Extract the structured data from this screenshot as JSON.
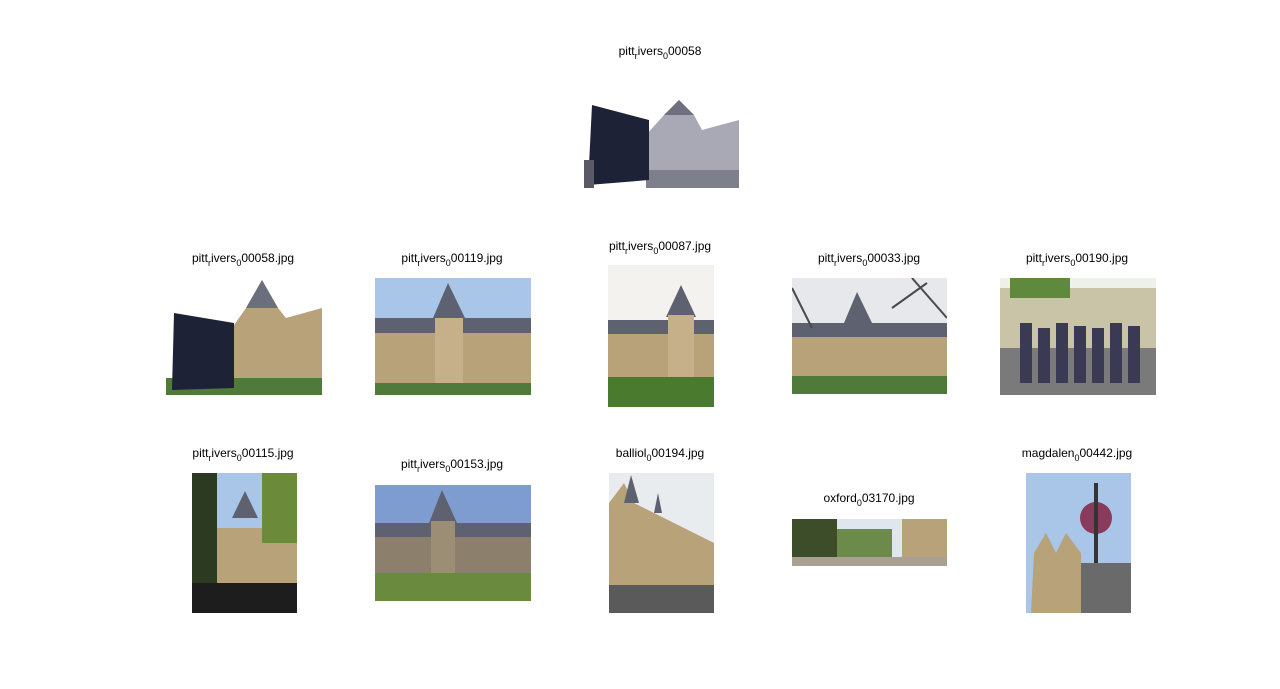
{
  "query": {
    "prefix": "pitt",
    "sub": "r",
    "middle": "ivers",
    "sub2": "0",
    "suffix": "00058"
  },
  "results": [
    {
      "a": "pitt",
      "s1": "r",
      "b": "ivers",
      "s2": "0",
      "c": "00058.jpg"
    },
    {
      "a": "pitt",
      "s1": "r",
      "b": "ivers",
      "s2": "0",
      "c": "00119.jpg"
    },
    {
      "a": "pitt",
      "s1": "r",
      "b": "ivers",
      "s2": "0",
      "c": "00087.jpg"
    },
    {
      "a": "pitt",
      "s1": "r",
      "b": "ivers",
      "s2": "0",
      "c": "00033.jpg"
    },
    {
      "a": "pitt",
      "s1": "r",
      "b": "ivers",
      "s2": "0",
      "c": "00190.jpg"
    },
    {
      "a": "pitt",
      "s1": "r",
      "b": "ivers",
      "s2": "0",
      "c": "00115.jpg"
    },
    {
      "a": "pitt",
      "s1": "r",
      "b": "ivers",
      "s2": "0",
      "c": "00153.jpg"
    },
    {
      "a": "",
      "s1": "",
      "b": "balliol",
      "s2": "0",
      "c": "00194.jpg"
    },
    {
      "a": "",
      "s1": "",
      "b": "oxford",
      "s2": "0",
      "c": "03170.jpg"
    },
    {
      "a": "",
      "s1": "",
      "b": "magdalen",
      "s2": "0",
      "c": "00442.jpg"
    }
  ],
  "colors": {
    "sky": "#a9c6e8",
    "stone": "#b8a27a",
    "roof": "#5d6170",
    "grass": "#4f7a3a",
    "sign": "#1e2236"
  }
}
